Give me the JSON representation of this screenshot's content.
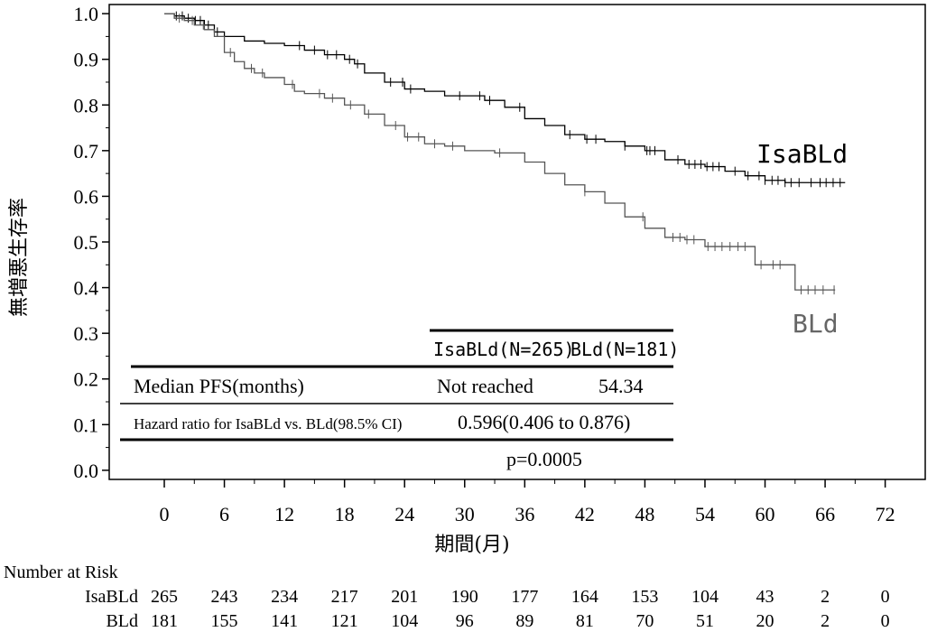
{
  "chart_data": {
    "type": "line",
    "xlabel": "期間(月)",
    "ylabel": "無増悪生存率",
    "xlim": [
      -5.5,
      76
    ],
    "ylim": [
      -0.02,
      1.02
    ],
    "x_ticks": [
      0,
      6,
      12,
      18,
      24,
      30,
      36,
      42,
      48,
      54,
      60,
      66,
      72
    ],
    "y_ticks": [
      0.0,
      0.1,
      0.2,
      0.3,
      0.4,
      0.5,
      0.6,
      0.7,
      0.8,
      0.9,
      1.0
    ],
    "y_tick_labels": [
      "0.0",
      "0.1",
      "0.2",
      "0.3",
      "0.4",
      "0.5",
      "0.6",
      "0.7",
      "0.8",
      "0.9",
      "1.0"
    ],
    "grid": false,
    "series": [
      {
        "name": "IsaBLd",
        "color": "#000000",
        "x": [
          0,
          1,
          2,
          3,
          4,
          5,
          6,
          8,
          10,
          12,
          14,
          16,
          18,
          19,
          20,
          22,
          24,
          26,
          28,
          30,
          32,
          34,
          36,
          38,
          40,
          42,
          44,
          46,
          48,
          50,
          52,
          54,
          56,
          58,
          60,
          62,
          64,
          66,
          68
        ],
        "y": [
          1.0,
          0.995,
          0.99,
          0.985,
          0.975,
          0.96,
          0.95,
          0.94,
          0.935,
          0.93,
          0.92,
          0.91,
          0.9,
          0.89,
          0.87,
          0.85,
          0.835,
          0.83,
          0.82,
          0.82,
          0.81,
          0.795,
          0.77,
          0.755,
          0.735,
          0.725,
          0.72,
          0.71,
          0.7,
          0.68,
          0.67,
          0.665,
          0.655,
          0.645,
          0.635,
          0.63,
          0.63,
          0.63,
          0.63
        ],
        "censor_x": [
          1.2,
          1.8,
          2.4,
          3.1,
          3.6,
          4.4,
          5.3,
          13.5,
          15.0,
          16.3,
          17.2,
          18.5,
          19.3,
          22.6,
          23.8,
          24.6,
          29.5,
          31.5,
          32.5,
          35.5,
          40.5,
          42.2,
          43.1,
          46.0,
          48.2,
          48.5,
          49.0,
          51.3,
          52.4,
          53.0,
          53.6,
          54.2,
          54.8,
          55.4,
          57.0,
          58.3,
          59.4,
          60.0,
          60.7,
          61.3,
          62.0,
          62.6,
          63.4,
          64.6,
          65.5,
          66.1,
          66.8,
          67.5
        ]
      },
      {
        "name": "BLd",
        "color": "#555555",
        "x": [
          0,
          1,
          2,
          3,
          4,
          5,
          6,
          7,
          8,
          9,
          10,
          12,
          13,
          14,
          16,
          18,
          20,
          22,
          24,
          26,
          28,
          30,
          33,
          36,
          38,
          40,
          42,
          44,
          46,
          48,
          50,
          52,
          54,
          56,
          58,
          59,
          60,
          62,
          63,
          64,
          66,
          67
        ],
        "y": [
          1.0,
          0.99,
          0.985,
          0.975,
          0.965,
          0.95,
          0.915,
          0.895,
          0.88,
          0.87,
          0.86,
          0.845,
          0.83,
          0.825,
          0.815,
          0.8,
          0.78,
          0.755,
          0.73,
          0.715,
          0.71,
          0.7,
          0.695,
          0.675,
          0.65,
          0.625,
          0.61,
          0.585,
          0.555,
          0.53,
          0.51,
          0.505,
          0.49,
          0.49,
          0.49,
          0.45,
          0.45,
          0.45,
          0.395,
          0.395,
          0.395,
          0.395
        ],
        "censor_x": [
          1.5,
          2.8,
          3.9,
          6.6,
          8.7,
          9.8,
          12.8,
          15.5,
          16.8,
          18.6,
          20.4,
          23.1,
          24.3,
          25.4,
          27.0,
          28.8,
          33.5,
          42.0,
          47.8,
          50.8,
          51.5,
          52.2,
          52.9,
          54.3,
          55.0,
          55.7,
          56.5,
          57.3,
          58.0,
          59.6,
          60.8,
          61.5,
          63.6,
          64.3,
          65.0,
          65.8,
          66.9
        ]
      }
    ],
    "legend": {
      "placement": "inline-labels"
    }
  },
  "summary_table": {
    "columns": [
      "IsaBLd(N=265)",
      "BLd(N=181)"
    ],
    "rows": [
      {
        "label": "Median PFS(months)",
        "values": [
          "Not reached",
          "54.34"
        ]
      },
      {
        "label": "Hazard ratio for IsaBLd vs. BLd(98.5% CI)",
        "values": [
          "0.596(0.406 to 0.876)"
        ]
      },
      {
        "label": "",
        "values": [
          "p=0.0005"
        ]
      }
    ]
  },
  "risk_table": {
    "title": "Number at Risk",
    "rows": [
      {
        "name": "IsaBLd",
        "values": [
          "265",
          "243",
          "234",
          "217",
          "201",
          "190",
          "177",
          "164",
          "153",
          "104",
          "43",
          "2",
          "0"
        ]
      },
      {
        "name": "BLd",
        "values": [
          "181",
          "155",
          "141",
          "121",
          "104",
          "96",
          "89",
          "81",
          "70",
          "51",
          "20",
          "2",
          "0"
        ]
      }
    ]
  }
}
